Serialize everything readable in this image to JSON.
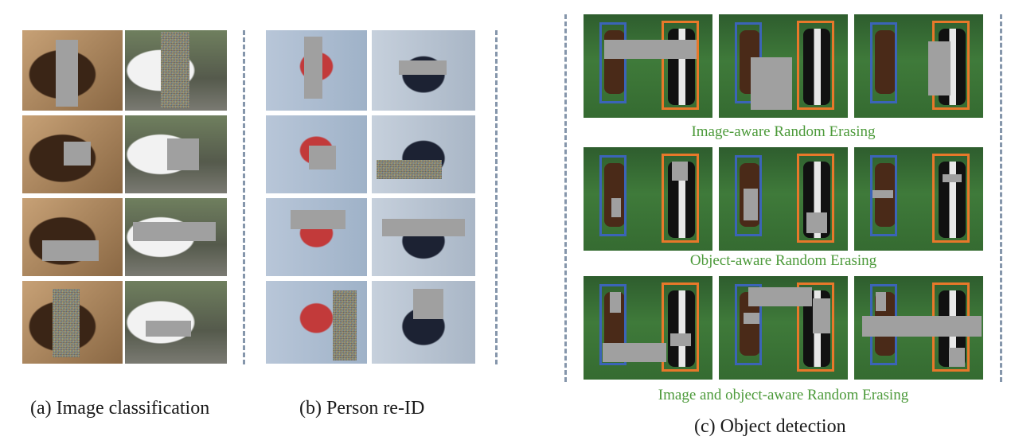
{
  "captions": {
    "a": "(a) Image classification",
    "b": "(b) Person re-ID",
    "c": "(c) Object detection"
  },
  "subcaptions": {
    "row1": "Image-aware Random Erasing",
    "row2": "Object-aware Random Erasing",
    "row3": "Image and object-aware Random Erasing"
  },
  "colors": {
    "erase_gray": "#a0a0a0",
    "box_blue": "#3b64b8",
    "box_orange": "#e8782a",
    "subcaption_green": "#4c9a3a",
    "divider": "#8596ab"
  }
}
